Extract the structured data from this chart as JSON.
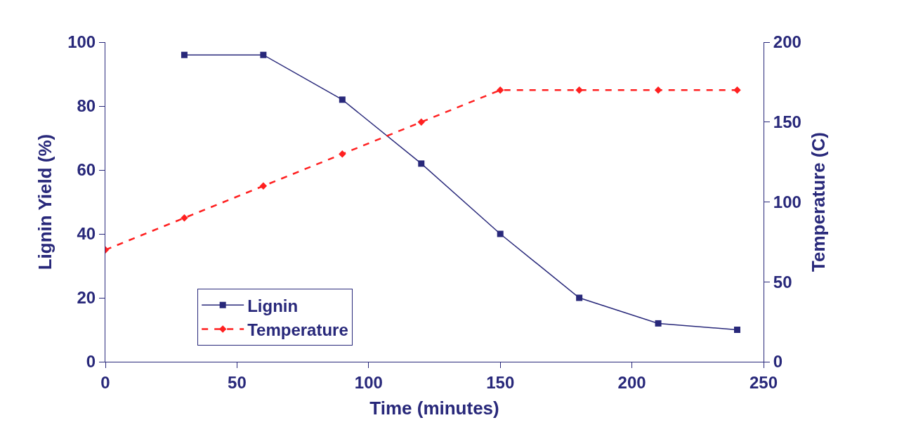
{
  "chart_data": {
    "type": "line",
    "xlabel": "Time (minutes)",
    "ylabel": "Lignin Yield (%)",
    "y2label": "Temperature (C)",
    "xlim": [
      0,
      250
    ],
    "xticks": [
      0,
      50,
      100,
      150,
      200,
      250
    ],
    "ylim": [
      0,
      100
    ],
    "yticks": [
      0,
      20,
      40,
      60,
      80,
      100
    ],
    "y2lim": [
      0,
      200
    ],
    "y2ticks": [
      0,
      50,
      100,
      150,
      200
    ],
    "legend": "bottom left",
    "series": [
      {
        "name": "Lignin",
        "color": "#28287a",
        "marker": "square",
        "line_style": "solid",
        "x": [
          30,
          60,
          90,
          120,
          150,
          180,
          210,
          240
        ],
        "values": [
          96,
          96,
          82,
          62,
          40,
          20,
          12,
          10
        ]
      },
      {
        "name": "Temperature",
        "color": "#ff2020",
        "marker": "diamond",
        "line_style": "dashed",
        "axis": "y2",
        "x": [
          0,
          30,
          60,
          90,
          120,
          150,
          180,
          210,
          240
        ],
        "values": [
          70,
          90,
          110,
          130,
          150,
          170,
          170,
          170,
          170
        ]
      }
    ]
  }
}
